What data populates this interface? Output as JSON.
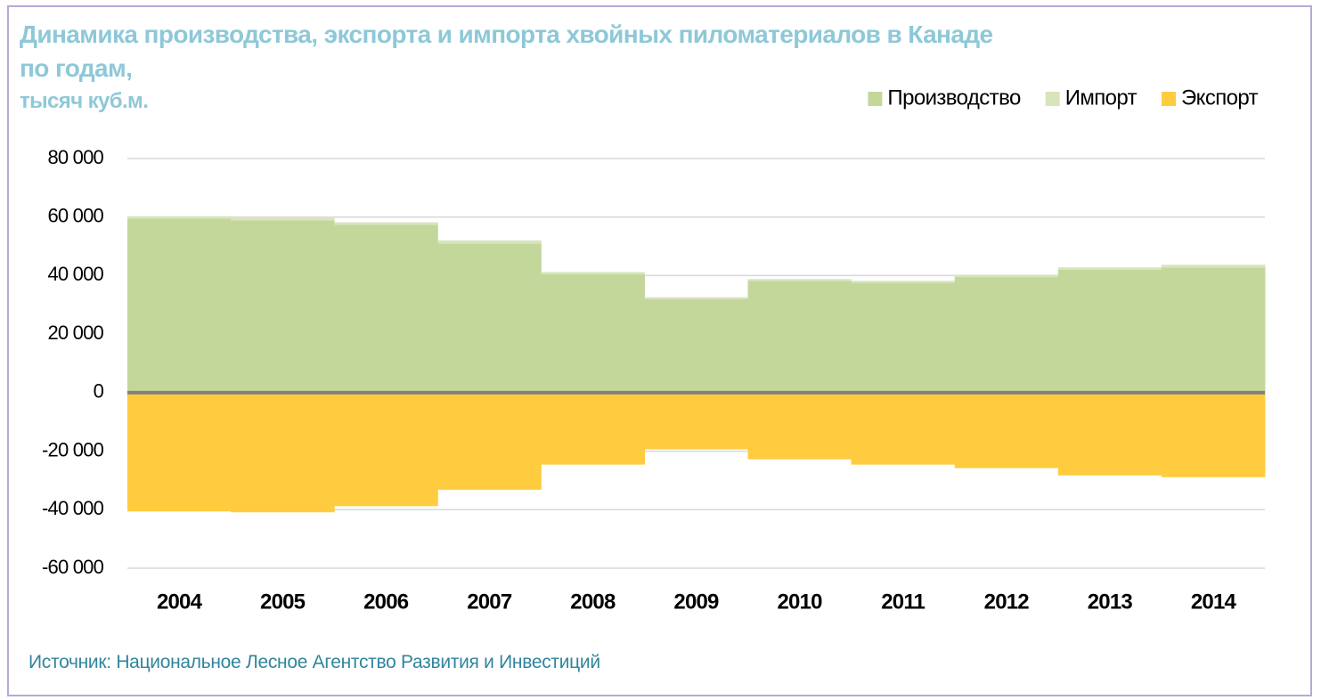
{
  "chart_data": {
    "type": "bar",
    "title": "Динамика производства, экспорта и импорта хвойных пиломатериалов в Канаде по годам,",
    "subtitle": "тысяч куб.м.",
    "source": "Источник: Национальное Лесное Агентство Развития и Инвестиций",
    "stacked": true,
    "grid": true,
    "legend": "top-right",
    "categories": [
      "2004",
      "2005",
      "2006",
      "2007",
      "2008",
      "2009",
      "2010",
      "2011",
      "2012",
      "2013",
      "2014"
    ],
    "series": [
      {
        "name": "Производство",
        "color": "#c4d79b",
        "values": [
          59500,
          58900,
          57400,
          51000,
          40500,
          32000,
          38200,
          37600,
          39500,
          42000,
          42800
        ]
      },
      {
        "name": "Импорт",
        "color": "#d8e4bc",
        "values": [
          800,
          800,
          800,
          1000,
          700,
          600,
          600,
          600,
          800,
          800,
          900
        ]
      },
      {
        "name": "Экспорт",
        "color": "#ffcc3f",
        "values": [
          -40600,
          -40900,
          -38800,
          -33200,
          -24600,
          -19400,
          -22800,
          -24600,
          -25800,
          -28300,
          -28900
        ]
      }
    ],
    "ylim": [
      -60000,
      80000
    ],
    "yticks": [
      {
        "value": -60000,
        "label": "-60 000"
      },
      {
        "value": -40000,
        "label": "-40 000"
      },
      {
        "value": -20000,
        "label": "-20 000"
      },
      0,
      {
        "value": 20000,
        "label": "20 000"
      },
      {
        "value": 40000,
        "label": "40 000"
      },
      {
        "value": 60000,
        "label": "60 000"
      },
      {
        "value": 80000,
        "label": "80 000"
      }
    ]
  }
}
